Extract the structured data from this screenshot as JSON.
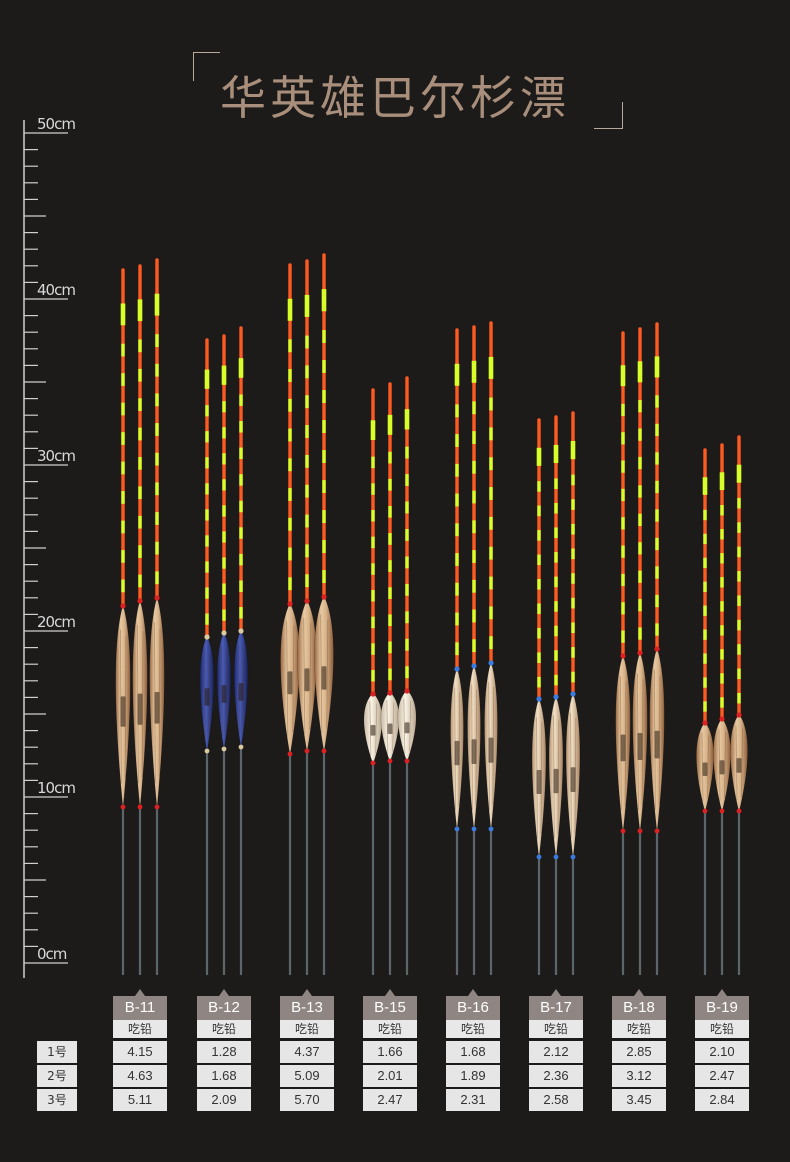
{
  "title": "华英雄巴尔杉漂",
  "ruler": {
    "labels": [
      "50cm",
      "40cm",
      "30cm",
      "20cm",
      "10cm",
      "0cm"
    ]
  },
  "table": {
    "sub_header": "吃铅",
    "row_labels": [
      "1号",
      "2号",
      "3号"
    ],
    "models": [
      {
        "code": "B-11",
        "values": [
          "4.15",
          "4.63",
          "5.11"
        ]
      },
      {
        "code": "B-12",
        "values": [
          "1.28",
          "1.68",
          "2.09"
        ]
      },
      {
        "code": "B-13",
        "values": [
          "4.37",
          "5.09",
          "5.70"
        ]
      },
      {
        "code": "B-15",
        "values": [
          "1.66",
          "2.01",
          "2.47"
        ]
      },
      {
        "code": "B-16",
        "values": [
          "1.68",
          "1.89",
          "2.31"
        ]
      },
      {
        "code": "B-17",
        "values": [
          "2.12",
          "2.36",
          "2.58"
        ]
      },
      {
        "code": "B-18",
        "values": [
          "2.85",
          "3.12",
          "3.45"
        ]
      },
      {
        "code": "B-19",
        "values": [
          "2.10",
          "2.47",
          "2.84"
        ]
      }
    ]
  },
  "colors": {
    "background": "#1c1b1a",
    "title": "#a98f7b",
    "tip_orange": "#ff5a1f",
    "tip_yellow": "#d8ff2a",
    "wood_body": "#d9b690",
    "blue_body": "#2d3b8a",
    "white_body": "#efe3cf",
    "stem": "#556065"
  }
}
